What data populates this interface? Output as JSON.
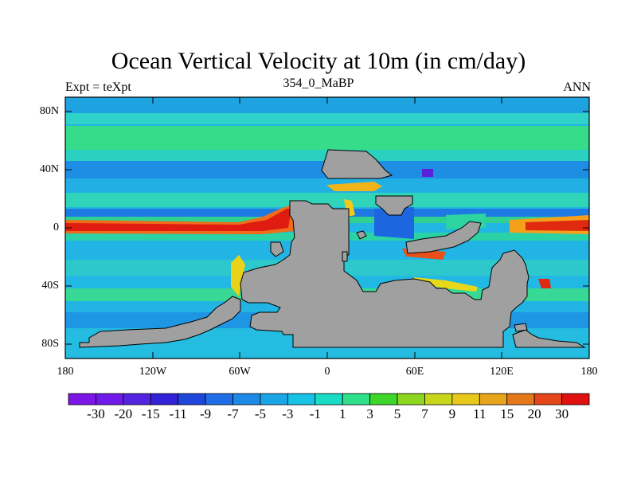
{
  "title": "Ocean Vertical Velocity at 10m (in cm/day)",
  "subtitle_left": "Expt = teXpt",
  "subtitle_center": "354_0_MaBP",
  "subtitle_right": "ANN",
  "y_ticks": [
    "80N",
    "40N",
    "0",
    "40S",
    "80S"
  ],
  "x_ticks": [
    "180",
    "120W",
    "60W",
    "0",
    "60E",
    "120E",
    "180"
  ],
  "colorbar": {
    "labels": [
      "-30",
      "-20",
      "-15",
      "-11",
      "-9",
      "-7",
      "-5",
      "-3",
      "-1",
      "1",
      "3",
      "5",
      "7",
      "9",
      "11",
      "15",
      "20",
      "30"
    ],
    "colors": [
      "#7b16e6",
      "#6f1ae8",
      "#5424e0",
      "#3422d8",
      "#1f46dc",
      "#1f6ee8",
      "#1e8ae8",
      "#1aa6e6",
      "#16c2e6",
      "#18dcc4",
      "#2ee08a",
      "#3ed62a",
      "#8cd61e",
      "#c8d61a",
      "#e8c81a",
      "#e8a41a",
      "#e4781a",
      "#e4461a",
      "#e01010"
    ]
  },
  "colors": {
    "land": "#a0a0a0",
    "ocean": "#22bee6",
    "ocean_band": "#2ed8a0",
    "equatorial": "#e02810"
  }
}
